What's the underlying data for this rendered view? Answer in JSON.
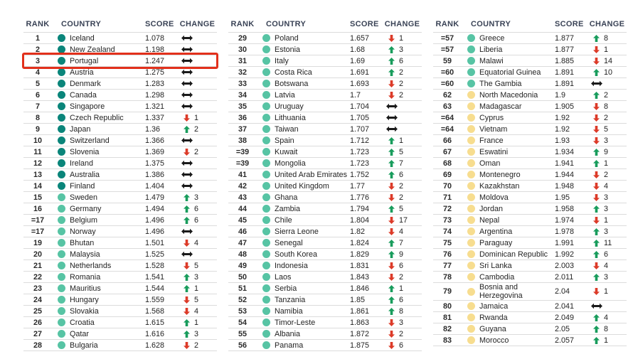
{
  "columns": {
    "rank": "RANK",
    "country": "COUNTRY",
    "score": "SCORE",
    "change": "CHANGE"
  },
  "colors": {
    "tier_very_high": "#0a857a",
    "tier_high": "#57c4a4",
    "tier_medium": "#f7dd8f",
    "up": "#189c5c",
    "down": "#dc3a28",
    "same": "#1a1a1a",
    "highlight": "#e2301b",
    "header_text": "#3a4356",
    "divider": "#dcdcdc"
  },
  "chart_data": {
    "type": "table",
    "columns": [
      "RANK",
      "COUNTRY",
      "SCORE",
      "CHANGE"
    ],
    "highlight": {
      "table_index": 0,
      "row_index": 2,
      "rank": "3",
      "country": "Portugal"
    },
    "tables": [
      {
        "rows": [
          {
            "rank": "1",
            "country": "Iceland",
            "score": "1.078",
            "dir": "same",
            "n": null,
            "tier": "very_high"
          },
          {
            "rank": "2",
            "country": "New Zealand",
            "score": "1.198",
            "dir": "same",
            "n": null,
            "tier": "very_high"
          },
          {
            "rank": "3",
            "country": "Portugal",
            "score": "1.247",
            "dir": "same",
            "n": null,
            "tier": "very_high"
          },
          {
            "rank": "4",
            "country": "Austria",
            "score": "1.275",
            "dir": "same",
            "n": null,
            "tier": "very_high"
          },
          {
            "rank": "5",
            "country": "Denmark",
            "score": "1.283",
            "dir": "same",
            "n": null,
            "tier": "very_high"
          },
          {
            "rank": "6",
            "country": "Canada",
            "score": "1.298",
            "dir": "same",
            "n": null,
            "tier": "very_high"
          },
          {
            "rank": "7",
            "country": "Singapore",
            "score": "1.321",
            "dir": "same",
            "n": null,
            "tier": "very_high"
          },
          {
            "rank": "8",
            "country": "Czech Republic",
            "score": "1.337",
            "dir": "down",
            "n": 1,
            "tier": "very_high"
          },
          {
            "rank": "9",
            "country": "Japan",
            "score": "1.36",
            "dir": "up",
            "n": 2,
            "tier": "very_high"
          },
          {
            "rank": "10",
            "country": "Switzerland",
            "score": "1.366",
            "dir": "same",
            "n": null,
            "tier": "very_high"
          },
          {
            "rank": "11",
            "country": "Slovenia",
            "score": "1.369",
            "dir": "down",
            "n": 2,
            "tier": "very_high"
          },
          {
            "rank": "12",
            "country": "Ireland",
            "score": "1.375",
            "dir": "same",
            "n": null,
            "tier": "very_high"
          },
          {
            "rank": "13",
            "country": "Australia",
            "score": "1.386",
            "dir": "same",
            "n": null,
            "tier": "very_high"
          },
          {
            "rank": "14",
            "country": "Finland",
            "score": "1.404",
            "dir": "same",
            "n": null,
            "tier": "very_high"
          },
          {
            "rank": "15",
            "country": "Sweden",
            "score": "1.479",
            "dir": "up",
            "n": 3,
            "tier": "high"
          },
          {
            "rank": "16",
            "country": "Germany",
            "score": "1.494",
            "dir": "up",
            "n": 6,
            "tier": "high"
          },
          {
            "rank": "=17",
            "country": "Belgium",
            "score": "1.496",
            "dir": "up",
            "n": 6,
            "tier": "high"
          },
          {
            "rank": "=17",
            "country": "Norway",
            "score": "1.496",
            "dir": "same",
            "n": null,
            "tier": "high"
          },
          {
            "rank": "19",
            "country": "Bhutan",
            "score": "1.501",
            "dir": "down",
            "n": 4,
            "tier": "high"
          },
          {
            "rank": "20",
            "country": "Malaysia",
            "score": "1.525",
            "dir": "same",
            "n": null,
            "tier": "high"
          },
          {
            "rank": "21",
            "country": "Netherlands",
            "score": "1.528",
            "dir": "down",
            "n": 5,
            "tier": "high"
          },
          {
            "rank": "22",
            "country": "Romania",
            "score": "1.541",
            "dir": "up",
            "n": 3,
            "tier": "high"
          },
          {
            "rank": "23",
            "country": "Mauritius",
            "score": "1.544",
            "dir": "up",
            "n": 1,
            "tier": "high"
          },
          {
            "rank": "24",
            "country": "Hungary",
            "score": "1.559",
            "dir": "down",
            "n": 5,
            "tier": "high"
          },
          {
            "rank": "25",
            "country": "Slovakia",
            "score": "1.568",
            "dir": "down",
            "n": 4,
            "tier": "high"
          },
          {
            "rank": "26",
            "country": "Croatia",
            "score": "1.615",
            "dir": "up",
            "n": 1,
            "tier": "high"
          },
          {
            "rank": "27",
            "country": "Qatar",
            "score": "1.616",
            "dir": "up",
            "n": 3,
            "tier": "high"
          },
          {
            "rank": "28",
            "country": "Bulgaria",
            "score": "1.628",
            "dir": "down",
            "n": 2,
            "tier": "high"
          }
        ]
      },
      {
        "rows": [
          {
            "rank": "29",
            "country": "Poland",
            "score": "1.657",
            "dir": "down",
            "n": 1,
            "tier": "high"
          },
          {
            "rank": "30",
            "country": "Estonia",
            "score": "1.68",
            "dir": "up",
            "n": 3,
            "tier": "high"
          },
          {
            "rank": "31",
            "country": "Italy",
            "score": "1.69",
            "dir": "up",
            "n": 6,
            "tier": "high"
          },
          {
            "rank": "32",
            "country": "Costa Rica",
            "score": "1.691",
            "dir": "up",
            "n": 2,
            "tier": "high"
          },
          {
            "rank": "33",
            "country": "Botswana",
            "score": "1.693",
            "dir": "down",
            "n": 2,
            "tier": "high"
          },
          {
            "rank": "34",
            "country": "Latvia",
            "score": "1.7",
            "dir": "down",
            "n": 2,
            "tier": "high"
          },
          {
            "rank": "35",
            "country": "Uruguay",
            "score": "1.704",
            "dir": "same",
            "n": null,
            "tier": "high"
          },
          {
            "rank": "36",
            "country": "Lithuania",
            "score": "1.705",
            "dir": "same",
            "n": null,
            "tier": "high"
          },
          {
            "rank": "37",
            "country": "Taiwan",
            "score": "1.707",
            "dir": "same",
            "n": null,
            "tier": "high"
          },
          {
            "rank": "38",
            "country": "Spain",
            "score": "1.712",
            "dir": "up",
            "n": 1,
            "tier": "high"
          },
          {
            "rank": "=39",
            "country": "Kuwait",
            "score": "1.723",
            "dir": "up",
            "n": 5,
            "tier": "high"
          },
          {
            "rank": "=39",
            "country": "Mongolia",
            "score": "1.723",
            "dir": "up",
            "n": 7,
            "tier": "high"
          },
          {
            "rank": "41",
            "country": "United Arab Emirates",
            "score": "1.752",
            "dir": "up",
            "n": 6,
            "tier": "high"
          },
          {
            "rank": "42",
            "country": "United Kingdom",
            "score": "1.77",
            "dir": "down",
            "n": 2,
            "tier": "high"
          },
          {
            "rank": "43",
            "country": "Ghana",
            "score": "1.776",
            "dir": "down",
            "n": 2,
            "tier": "high"
          },
          {
            "rank": "44",
            "country": "Zambia",
            "score": "1.794",
            "dir": "up",
            "n": 5,
            "tier": "high"
          },
          {
            "rank": "45",
            "country": "Chile",
            "score": "1.804",
            "dir": "down",
            "n": 17,
            "tier": "high"
          },
          {
            "rank": "46",
            "country": "Sierra Leone",
            "score": "1.82",
            "dir": "down",
            "n": 4,
            "tier": "high"
          },
          {
            "rank": "47",
            "country": "Senegal",
            "score": "1.824",
            "dir": "up",
            "n": 7,
            "tier": "high"
          },
          {
            "rank": "48",
            "country": "South Korea",
            "score": "1.829",
            "dir": "up",
            "n": 9,
            "tier": "high"
          },
          {
            "rank": "49",
            "country": "Indonesia",
            "score": "1.831",
            "dir": "down",
            "n": 6,
            "tier": "high"
          },
          {
            "rank": "50",
            "country": "Laos",
            "score": "1.843",
            "dir": "down",
            "n": 2,
            "tier": "high"
          },
          {
            "rank": "51",
            "country": "Serbia",
            "score": "1.846",
            "dir": "up",
            "n": 1,
            "tier": "high"
          },
          {
            "rank": "52",
            "country": "Tanzania",
            "score": "1.85",
            "dir": "up",
            "n": 6,
            "tier": "high"
          },
          {
            "rank": "53",
            "country": "Namibia",
            "score": "1.861",
            "dir": "up",
            "n": 8,
            "tier": "high"
          },
          {
            "rank": "54",
            "country": "Timor-Leste",
            "score": "1.863",
            "dir": "down",
            "n": 3,
            "tier": "high"
          },
          {
            "rank": "55",
            "country": "Albania",
            "score": "1.872",
            "dir": "down",
            "n": 2,
            "tier": "high"
          },
          {
            "rank": "56",
            "country": "Panama",
            "score": "1.875",
            "dir": "down",
            "n": 6,
            "tier": "high"
          }
        ]
      },
      {
        "rows": [
          {
            "rank": "=57",
            "country": "Greece",
            "score": "1.877",
            "dir": "up",
            "n": 8,
            "tier": "high"
          },
          {
            "rank": "=57",
            "country": "Liberia",
            "score": "1.877",
            "dir": "down",
            "n": 1,
            "tier": "high"
          },
          {
            "rank": "59",
            "country": "Malawi",
            "score": "1.885",
            "dir": "down",
            "n": 14,
            "tier": "high"
          },
          {
            "rank": "=60",
            "country": "Equatorial Guinea",
            "score": "1.891",
            "dir": "up",
            "n": 10,
            "tier": "high"
          },
          {
            "rank": "=60",
            "country": "The Gambia",
            "score": "1.891",
            "dir": "same",
            "n": null,
            "tier": "high"
          },
          {
            "rank": "62",
            "country": "North Macedonia",
            "score": "1.9",
            "dir": "up",
            "n": 2,
            "tier": "medium"
          },
          {
            "rank": "63",
            "country": "Madagascar",
            "score": "1.905",
            "dir": "down",
            "n": 8,
            "tier": "medium"
          },
          {
            "rank": "=64",
            "country": "Cyprus",
            "score": "1.92",
            "dir": "down",
            "n": 2,
            "tier": "medium"
          },
          {
            "rank": "=64",
            "country": "Vietnam",
            "score": "1.92",
            "dir": "down",
            "n": 5,
            "tier": "medium"
          },
          {
            "rank": "66",
            "country": "France",
            "score": "1.93",
            "dir": "down",
            "n": 3,
            "tier": "medium"
          },
          {
            "rank": "67",
            "country": "Eswatini",
            "score": "1.934",
            "dir": "up",
            "n": 9,
            "tier": "medium"
          },
          {
            "rank": "68",
            "country": "Oman",
            "score": "1.941",
            "dir": "up",
            "n": 1,
            "tier": "medium"
          },
          {
            "rank": "69",
            "country": "Montenegro",
            "score": "1.944",
            "dir": "down",
            "n": 2,
            "tier": "medium"
          },
          {
            "rank": "70",
            "country": "Kazakhstan",
            "score": "1.948",
            "dir": "down",
            "n": 4,
            "tier": "medium"
          },
          {
            "rank": "71",
            "country": "Moldova",
            "score": "1.95",
            "dir": "down",
            "n": 3,
            "tier": "medium"
          },
          {
            "rank": "72",
            "country": "Jordan",
            "score": "1.958",
            "dir": "up",
            "n": 3,
            "tier": "medium"
          },
          {
            "rank": "73",
            "country": "Nepal",
            "score": "1.974",
            "dir": "down",
            "n": 1,
            "tier": "medium"
          },
          {
            "rank": "74",
            "country": "Argentina",
            "score": "1.978",
            "dir": "up",
            "n": 3,
            "tier": "medium"
          },
          {
            "rank": "75",
            "country": "Paraguay",
            "score": "1.991",
            "dir": "up",
            "n": 11,
            "tier": "medium"
          },
          {
            "rank": "76",
            "country": "Dominican Republic",
            "score": "1.992",
            "dir": "up",
            "n": 6,
            "tier": "medium"
          },
          {
            "rank": "77",
            "country": "Sri Lanka",
            "score": "2.003",
            "dir": "down",
            "n": 4,
            "tier": "medium"
          },
          {
            "rank": "78",
            "country": "Cambodia",
            "score": "2.011",
            "dir": "up",
            "n": 3,
            "tier": "medium"
          },
          {
            "rank": "79",
            "country": "Bosnia and Herzegovina",
            "score": "2.04",
            "dir": "down",
            "n": 1,
            "tier": "medium"
          },
          {
            "rank": "80",
            "country": "Jamaica",
            "score": "2.041",
            "dir": "same",
            "n": null,
            "tier": "medium"
          },
          {
            "rank": "81",
            "country": "Rwanda",
            "score": "2.049",
            "dir": "up",
            "n": 4,
            "tier": "medium"
          },
          {
            "rank": "82",
            "country": "Guyana",
            "score": "2.05",
            "dir": "up",
            "n": 8,
            "tier": "medium"
          },
          {
            "rank": "83",
            "country": "Morocco",
            "score": "2.057",
            "dir": "up",
            "n": 1,
            "tier": "medium"
          }
        ]
      }
    ]
  }
}
